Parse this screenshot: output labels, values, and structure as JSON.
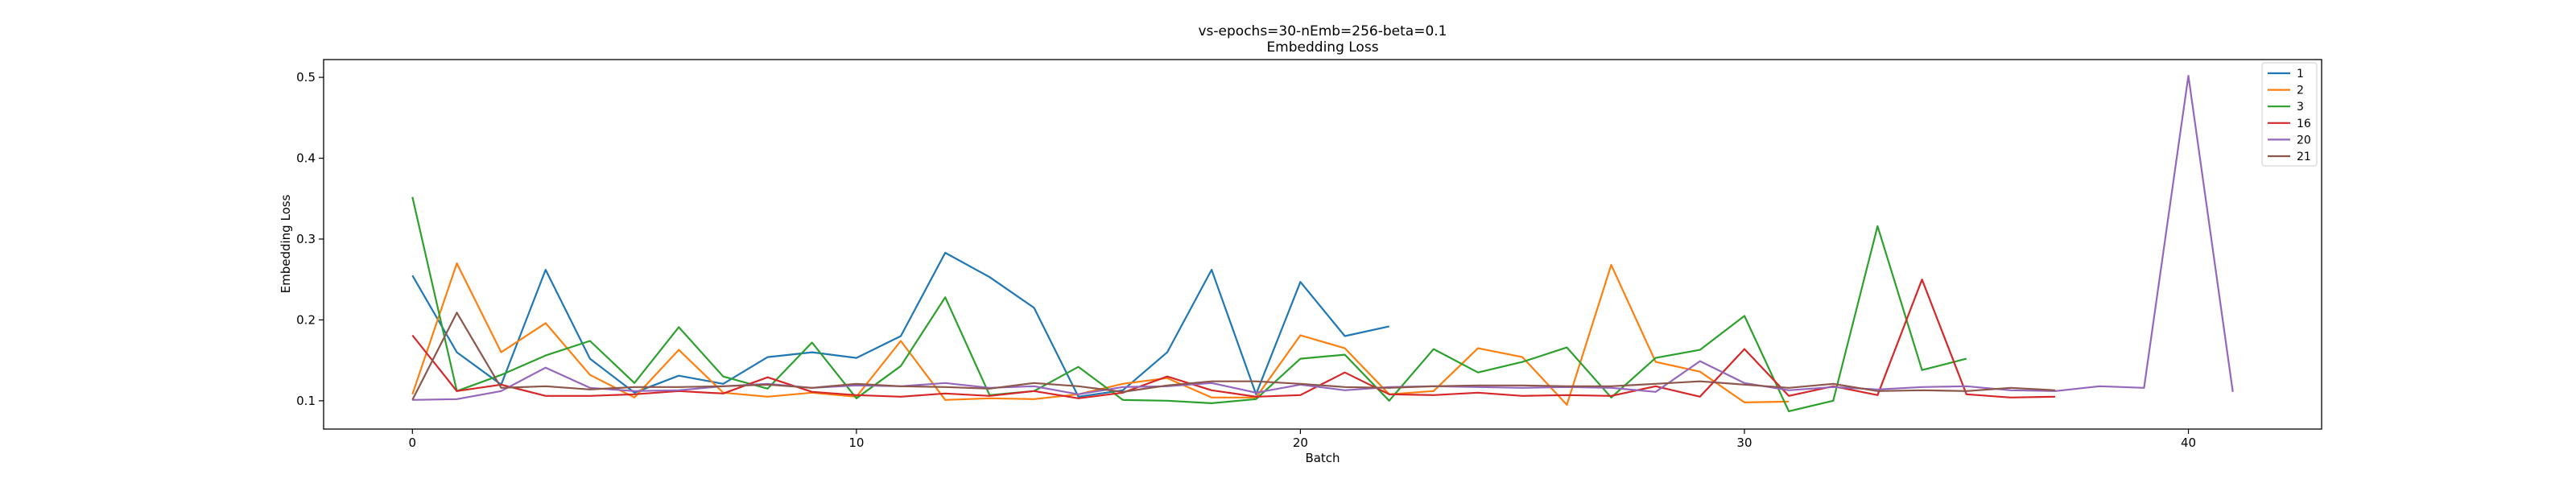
{
  "chart_data": {
    "type": "line",
    "title": "vs-epochs=30-nEmb=256-beta=0.1",
    "subtitle": "Embedding Loss",
    "xlabel": "Batch",
    "ylabel": "Embedding Loss",
    "xlim": [
      -2,
      43
    ],
    "ylim": [
      0.065,
      0.522
    ],
    "xticks": [
      0,
      10,
      20,
      30,
      40
    ],
    "yticks": [
      0.1,
      0.2,
      0.3,
      0.4,
      0.5
    ],
    "xtick_labels": [
      "0",
      "10",
      "20",
      "30",
      "40"
    ],
    "ytick_labels": [
      "0.1",
      "0.2",
      "0.3",
      "0.4",
      "0.5"
    ],
    "grid": false,
    "legend_position": "top-right",
    "series": [
      {
        "name": "1",
        "color": "#1f77b4",
        "x": [
          0,
          1,
          2,
          3,
          4,
          5,
          6,
          7,
          8,
          9,
          10,
          11,
          12,
          13,
          14,
          15,
          16,
          17,
          18,
          19,
          20,
          21,
          22
        ],
        "values": [
          0.255,
          0.16,
          0.12,
          0.262,
          0.152,
          0.11,
          0.131,
          0.121,
          0.154,
          0.16,
          0.153,
          0.18,
          0.283,
          0.253,
          0.215,
          0.105,
          0.113,
          0.16,
          0.262,
          0.108,
          0.247,
          0.18,
          0.192
        ]
      },
      {
        "name": "2",
        "color": "#ff7f0e",
        "x": [
          0,
          1,
          2,
          3,
          4,
          5,
          6,
          7,
          8,
          9,
          10,
          11,
          12,
          13,
          14,
          15,
          16,
          17,
          18,
          19,
          20,
          21,
          22,
          23,
          24,
          25,
          26,
          27,
          28,
          29,
          30,
          31
        ],
        "values": [
          0.108,
          0.27,
          0.16,
          0.196,
          0.132,
          0.104,
          0.163,
          0.11,
          0.105,
          0.11,
          0.105,
          0.174,
          0.101,
          0.103,
          0.102,
          0.108,
          0.121,
          0.128,
          0.104,
          0.104,
          0.181,
          0.165,
          0.108,
          0.112,
          0.165,
          0.154,
          0.095,
          0.268,
          0.148,
          0.136,
          0.098,
          0.099
        ]
      },
      {
        "name": "3",
        "color": "#2ca02c",
        "x": [
          0,
          1,
          2,
          3,
          4,
          5,
          6,
          7,
          8,
          9,
          10,
          11,
          12,
          13,
          14,
          15,
          16,
          17,
          18,
          19,
          20,
          21,
          22,
          23,
          24,
          25,
          26,
          27,
          28,
          29,
          30,
          31,
          32,
          33,
          34,
          35
        ],
        "values": [
          0.352,
          0.112,
          0.132,
          0.156,
          0.174,
          0.122,
          0.191,
          0.13,
          0.115,
          0.172,
          0.103,
          0.143,
          0.228,
          0.107,
          0.112,
          0.142,
          0.101,
          0.1,
          0.097,
          0.102,
          0.152,
          0.157,
          0.1,
          0.164,
          0.135,
          0.148,
          0.166,
          0.104,
          0.153,
          0.163,
          0.205,
          0.087,
          0.1,
          0.316,
          0.138,
          0.152
        ]
      },
      {
        "name": "16",
        "color": "#d62728",
        "x": [
          0,
          1,
          2,
          3,
          4,
          5,
          6,
          7,
          8,
          9,
          10,
          11,
          12,
          13,
          14,
          15,
          16,
          17,
          18,
          19,
          20,
          21,
          22,
          23,
          24,
          25,
          26,
          27,
          28,
          29,
          30,
          31,
          32,
          33,
          34,
          35,
          36,
          37
        ],
        "values": [
          0.181,
          0.112,
          0.12,
          0.106,
          0.106,
          0.108,
          0.112,
          0.109,
          0.129,
          0.111,
          0.107,
          0.105,
          0.109,
          0.106,
          0.112,
          0.103,
          0.11,
          0.13,
          0.113,
          0.105,
          0.107,
          0.135,
          0.108,
          0.107,
          0.11,
          0.106,
          0.107,
          0.106,
          0.118,
          0.105,
          0.164,
          0.106,
          0.118,
          0.107,
          0.25,
          0.108,
          0.104,
          0.105
        ]
      },
      {
        "name": "20",
        "color": "#9467bd",
        "x": [
          0,
          1,
          2,
          3,
          4,
          5,
          6,
          7,
          8,
          9,
          10,
          11,
          12,
          13,
          14,
          15,
          16,
          17,
          18,
          19,
          20,
          21,
          22,
          23,
          24,
          25,
          26,
          27,
          28,
          29,
          30,
          31,
          32,
          33,
          34,
          35,
          36,
          37,
          38,
          39,
          40,
          41
        ],
        "values": [
          0.101,
          0.102,
          0.112,
          0.141,
          0.116,
          0.112,
          0.113,
          0.118,
          0.121,
          0.116,
          0.119,
          0.118,
          0.122,
          0.116,
          0.118,
          0.108,
          0.117,
          0.118,
          0.122,
          0.11,
          0.12,
          0.113,
          0.117,
          0.118,
          0.117,
          0.116,
          0.117,
          0.116,
          0.111,
          0.149,
          0.122,
          0.113,
          0.117,
          0.114,
          0.117,
          0.118,
          0.113,
          0.112,
          0.118,
          0.116,
          0.502,
          0.111
        ]
      },
      {
        "name": "21",
        "color": "#8c564b",
        "x": [
          0,
          1,
          2,
          3,
          4,
          5,
          6,
          7,
          8,
          9,
          10,
          11,
          12,
          13,
          14,
          15,
          16,
          17,
          18,
          19,
          20,
          21,
          22,
          23,
          24,
          25,
          26,
          27,
          28,
          29,
          30,
          31,
          32,
          33,
          34,
          35,
          36,
          37
        ],
        "values": [
          0.101,
          0.209,
          0.116,
          0.118,
          0.114,
          0.117,
          0.117,
          0.118,
          0.12,
          0.116,
          0.121,
          0.118,
          0.117,
          0.115,
          0.122,
          0.118,
          0.111,
          0.119,
          0.124,
          0.124,
          0.121,
          0.117,
          0.116,
          0.118,
          0.119,
          0.119,
          0.118,
          0.118,
          0.121,
          0.124,
          0.12,
          0.116,
          0.121,
          0.112,
          0.113,
          0.112,
          0.116,
          0.113
        ]
      }
    ]
  }
}
